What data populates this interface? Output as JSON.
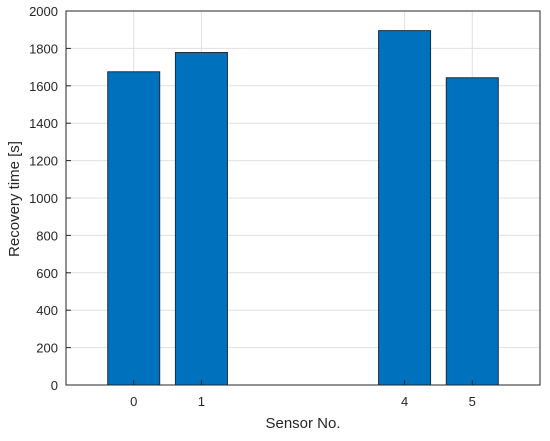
{
  "chart_data": {
    "type": "bar",
    "categories": [
      "0",
      "1",
      "4",
      "5"
    ],
    "x": [
      0,
      1,
      4,
      5
    ],
    "values": [
      1675,
      1778,
      1895,
      1643
    ],
    "title": "",
    "xlabel": "Sensor No.",
    "ylabel": "Recovery time [s]",
    "xlim": [
      -1,
      6
    ],
    "ylim": [
      0,
      2000
    ],
    "yticks": [
      0,
      200,
      400,
      600,
      800,
      1000,
      1200,
      1400,
      1600,
      1800,
      2000
    ],
    "xticks": [
      "0",
      "1",
      "4",
      "5"
    ],
    "grid": true,
    "legend": "none",
    "colors": {
      "bar_fill": "#0072BD",
      "bar_edge": "#1f2a3a",
      "grid": "#e0e0e0",
      "axis": "#262626"
    }
  }
}
